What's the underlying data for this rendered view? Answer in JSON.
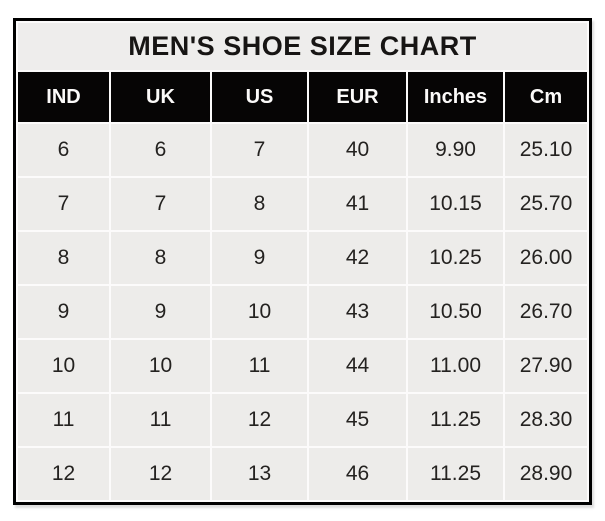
{
  "chart_data": {
    "type": "table",
    "title": "MEN'S SHOE SIZE CHART",
    "columns": [
      "IND",
      "UK",
      "US",
      "EUR",
      "Inches",
      "Cm"
    ],
    "rows": [
      [
        "6",
        "6",
        "7",
        "40",
        "9.90",
        "25.10"
      ],
      [
        "7",
        "7",
        "8",
        "41",
        "10.15",
        "25.70"
      ],
      [
        "8",
        "8",
        "9",
        "42",
        "10.25",
        "26.00"
      ],
      [
        "9",
        "9",
        "10",
        "43",
        "10.50",
        "26.70"
      ],
      [
        "10",
        "10",
        "11",
        "44",
        "11.00",
        "27.90"
      ],
      [
        "11",
        "11",
        "12",
        "45",
        "11.25",
        "28.30"
      ],
      [
        "12",
        "12",
        "13",
        "46",
        "11.25",
        "28.90"
      ]
    ],
    "layout": {
      "legend": "none",
      "grid": "white gridlines between cells",
      "header_style": "black background, white bold text",
      "title_position": "top band spanning all columns"
    },
    "colors": {
      "border": "#000000",
      "header_bg": "#060505",
      "header_text": "#fbfaf9",
      "title_bg": "#eeedec",
      "cell_bg": "#edecea",
      "gridline": "#fcfbfb",
      "body_text": "#242220",
      "page_bg": "#ffffff"
    }
  }
}
